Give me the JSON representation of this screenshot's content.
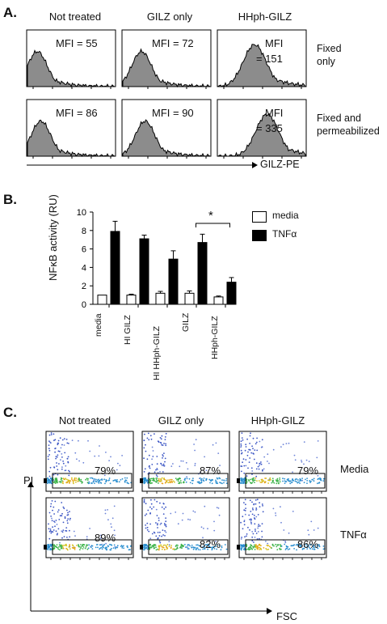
{
  "panelA": {
    "letter": "A.",
    "columns": [
      "Not treated",
      "GILZ only",
      "HHph-GILZ"
    ],
    "rows": [
      {
        "label_lines": [
          "Fixed",
          "only"
        ],
        "mfi": [
          "MFI = 55",
          "MFI = 72",
          [
            "MFI",
            "= 151"
          ]
        ]
      },
      {
        "label_lines": [
          "Fixed and",
          "permeabilized"
        ],
        "mfi": [
          "MFI = 86",
          "MFI = 90",
          [
            "MFI",
            "= 335"
          ]
        ]
      }
    ],
    "xaxis": "GILZ-PE"
  },
  "panelB": {
    "letter": "B.",
    "ylabel": "NFκB activity (RU)",
    "significance": "*",
    "legend": [
      {
        "name": "media",
        "color": "#ffffff"
      },
      {
        "name": "TNFα",
        "color": "#000000"
      }
    ]
  },
  "chart_data": {
    "type": "bar",
    "categories": [
      "media",
      "HI GILZ",
      "HI HHph-GILZ",
      "GILZ",
      "HHph-GILZ"
    ],
    "series": [
      {
        "name": "media",
        "values": [
          1.0,
          1.0,
          1.2,
          1.2,
          0.8
        ],
        "errors": [
          0.0,
          0.1,
          0.2,
          0.25,
          0.1
        ]
      },
      {
        "name": "TNFα",
        "values": [
          7.9,
          7.1,
          4.9,
          6.7,
          2.4
        ],
        "errors": [
          1.1,
          0.4,
          0.9,
          0.9,
          0.5
        ]
      }
    ],
    "ylim": [
      0,
      10
    ],
    "yticks": [
      0,
      2,
      4,
      6,
      8,
      10
    ]
  },
  "panelC": {
    "letter": "C.",
    "columns": [
      "Not treated",
      "GILZ only",
      "HHph-GILZ"
    ],
    "rows": [
      {
        "label": "Media",
        "percents": [
          "79%",
          "87%",
          "79%"
        ]
      },
      {
        "label": "TNFα",
        "percents": [
          "89%",
          "82%",
          "86%"
        ]
      }
    ],
    "yaxis": "PI",
    "xaxis": "FSC"
  }
}
